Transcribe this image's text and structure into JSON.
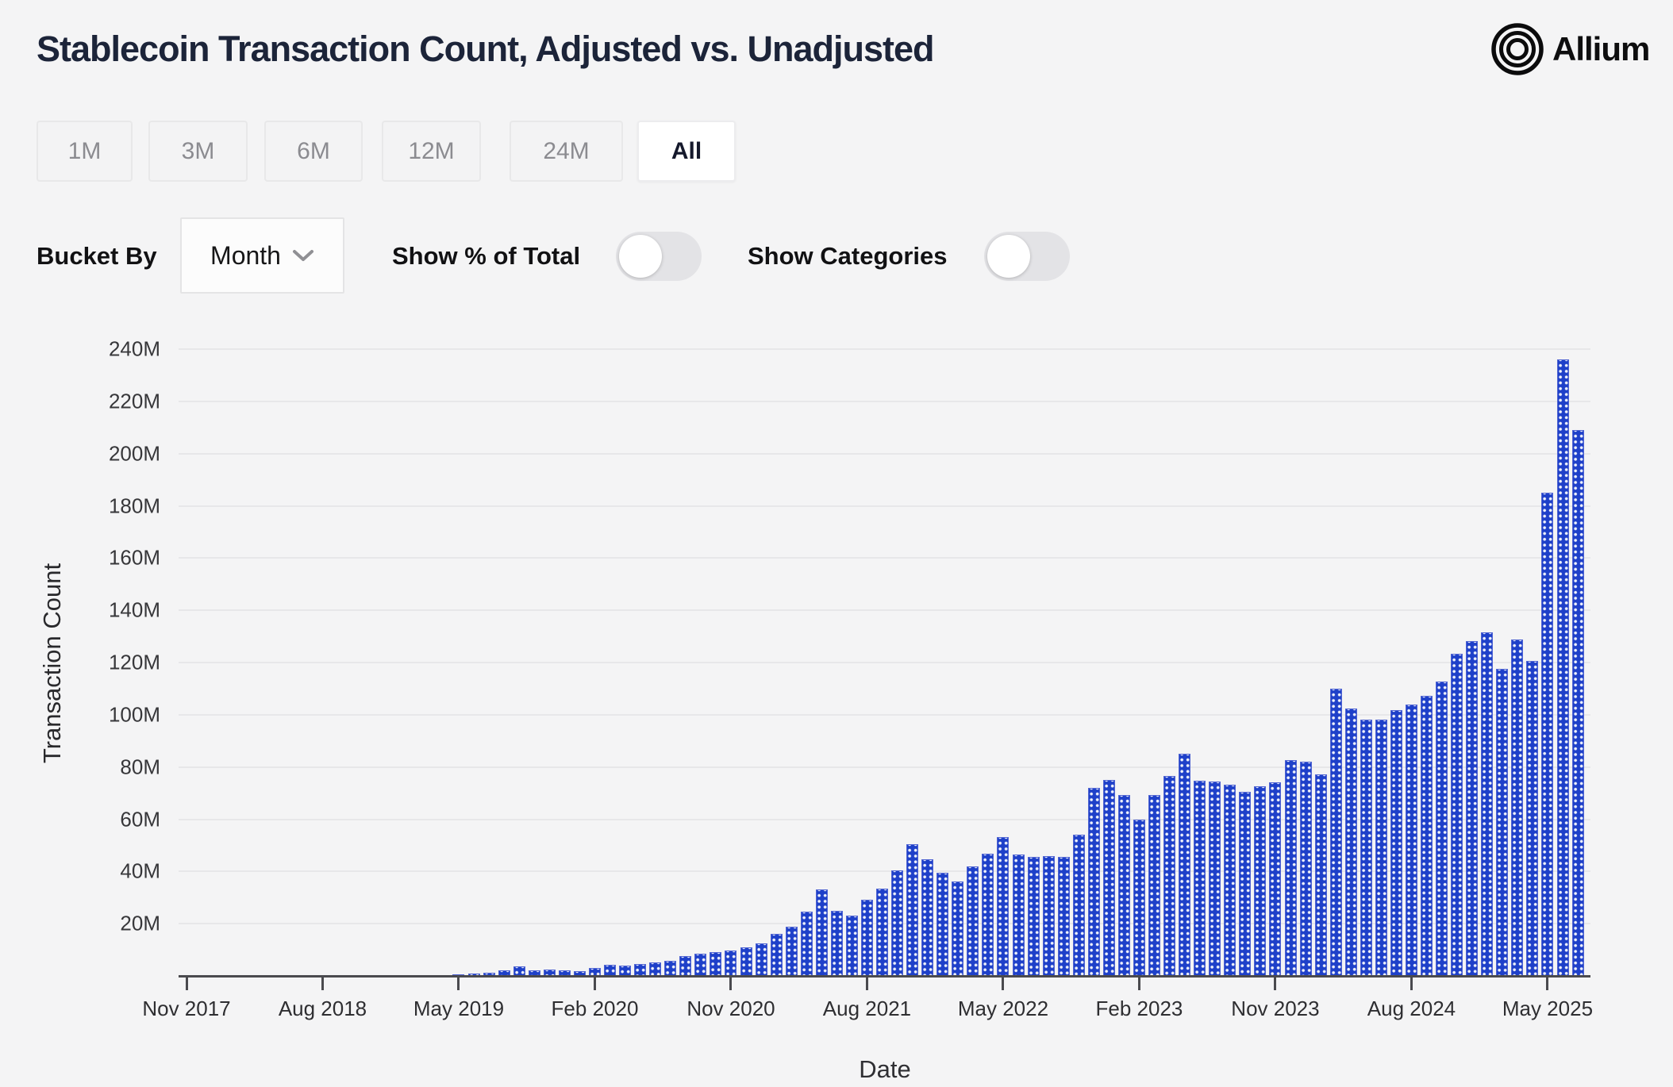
{
  "header": {
    "title": "Stablecoin Transaction Count, Adjusted vs. Unadjusted",
    "logo_text": "Allium"
  },
  "time_range": {
    "buttons": [
      {
        "label": "1M",
        "active": false
      },
      {
        "label": "3M",
        "active": false
      },
      {
        "label": "6M",
        "active": false
      },
      {
        "label": "12M",
        "active": false
      },
      {
        "label": "24M",
        "active": false
      },
      {
        "label": "All",
        "active": true
      }
    ]
  },
  "controls": {
    "bucket_by": {
      "label": "Bucket By",
      "value": "Month"
    },
    "show_pct_of_total": {
      "label": "Show % of Total",
      "on": false
    },
    "show_categories": {
      "label": "Show Categories",
      "on": false
    }
  },
  "chart_data": {
    "type": "bar",
    "title": "Stablecoin Transaction Count, Adjusted vs. Unadjusted",
    "xlabel": "Date",
    "ylabel": "Transaction Count",
    "unit": "M",
    "ylim_m": [
      0,
      250
    ],
    "y_ticks_m": [
      20,
      40,
      60,
      80,
      100,
      120,
      140,
      160,
      180,
      200,
      220,
      240
    ],
    "grid": true,
    "legend": "none",
    "bar_color": "#1e40c9",
    "bar_pattern": "white-dots",
    "x_ticks": [
      {
        "label": "Nov 2017",
        "month_index": 0
      },
      {
        "label": "Aug 2018",
        "month_index": 9
      },
      {
        "label": "May 2019",
        "month_index": 18
      },
      {
        "label": "Feb 2020",
        "month_index": 27
      },
      {
        "label": "Nov 2020",
        "month_index": 36
      },
      {
        "label": "Aug 2021",
        "month_index": 45
      },
      {
        "label": "May 2022",
        "month_index": 54
      },
      {
        "label": "Feb 2023",
        "month_index": 63
      },
      {
        "label": "Nov 2023",
        "month_index": 72
      },
      {
        "label": "Aug 2024",
        "month_index": 81
      },
      {
        "label": "May 2025",
        "month_index": 90
      }
    ],
    "series": [
      {
        "name": "Stablecoin Transaction Count",
        "months": [
          "Nov 2017",
          "Dec 2017",
          "Jan 2018",
          "Feb 2018",
          "Mar 2018",
          "Apr 2018",
          "May 2018",
          "Jun 2018",
          "Jul 2018",
          "Aug 2018",
          "Sep 2018",
          "Oct 2018",
          "Nov 2018",
          "Dec 2018",
          "Jan 2019",
          "Feb 2019",
          "Mar 2019",
          "Apr 2019",
          "May 2019",
          "Jun 2019",
          "Jul 2019",
          "Aug 2019",
          "Sep 2019",
          "Oct 2019",
          "Nov 2019",
          "Dec 2019",
          "Jan 2020",
          "Feb 2020",
          "Mar 2020",
          "Apr 2020",
          "May 2020",
          "Jun 2020",
          "Jul 2020",
          "Aug 2020",
          "Sep 2020",
          "Oct 2020",
          "Nov 2020",
          "Dec 2020",
          "Jan 2021",
          "Feb 2021",
          "Mar 2021",
          "Apr 2021",
          "May 2021",
          "Jun 2021",
          "Jul 2021",
          "Aug 2021",
          "Sep 2021",
          "Oct 2021",
          "Nov 2021",
          "Dec 2021",
          "Jan 2022",
          "Feb 2022",
          "Mar 2022",
          "Apr 2022",
          "May 2022",
          "Jun 2022",
          "Jul 2022",
          "Aug 2022",
          "Sep 2022",
          "Oct 2022",
          "Nov 2022",
          "Dec 2022",
          "Jan 2023",
          "Feb 2023",
          "Mar 2023",
          "Apr 2023",
          "May 2023",
          "Jun 2023",
          "Jul 2023",
          "Aug 2023",
          "Sep 2023",
          "Oct 2023",
          "Nov 2023",
          "Dec 2023",
          "Jan 2024",
          "Feb 2024",
          "Mar 2024",
          "Apr 2024",
          "May 2024",
          "Jun 2024",
          "Jul 2024",
          "Aug 2024",
          "Sep 2024",
          "Oct 2024",
          "Nov 2024",
          "Dec 2024",
          "Jan 2025",
          "Feb 2025",
          "Mar 2025",
          "Apr 2025",
          "May 2025",
          "Jun 2025",
          "Jul 2025"
        ],
        "values_m": [
          0.02,
          0.03,
          0.04,
          0.05,
          0.05,
          0.06,
          0.07,
          0.08,
          0.09,
          0.1,
          0.11,
          0.12,
          0.14,
          0.16,
          0.18,
          0.22,
          0.28,
          0.35,
          0.5,
          0.8,
          1.3,
          2.2,
          3.6,
          2.0,
          2.3,
          2.2,
          1.8,
          3.0,
          4.3,
          3.9,
          4.6,
          5.1,
          5.9,
          7.6,
          8.6,
          9.1,
          9.6,
          10.9,
          12.4,
          16.0,
          18.7,
          24.6,
          33.0,
          25.0,
          23.1,
          29.3,
          33.5,
          40.5,
          50.5,
          44.8,
          39.6,
          36.3,
          41.8,
          46.7,
          53.1,
          46.5,
          45.7,
          46.0,
          45.5,
          54.1,
          72.0,
          74.9,
          69.3,
          59.8,
          69.3,
          76.6,
          85.1,
          74.8,
          74.5,
          73.3,
          70.5,
          72.6,
          74.2,
          82.7,
          82.1,
          77.2,
          110.0,
          102.4,
          98.2,
          98.2,
          101.8,
          104.0,
          107.3,
          112.8,
          123.4,
          128.3,
          131.6,
          117.6,
          128.9,
          120.7,
          185.1,
          236.2,
          208.9
        ]
      }
    ]
  }
}
